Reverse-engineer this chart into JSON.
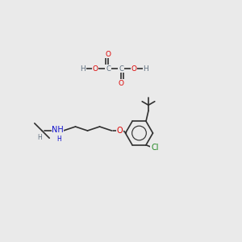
{
  "background_color": "#eaeaea",
  "atom_colors": {
    "C": "#607080",
    "H": "#607080",
    "O": "#dd0000",
    "N": "#1010cc",
    "Cl": "#228822"
  },
  "bond_color": "#303030",
  "bond_lw": 1.2,
  "font_size": 6.5,
  "figsize": [
    3.0,
    3.0
  ],
  "dpi": 100
}
